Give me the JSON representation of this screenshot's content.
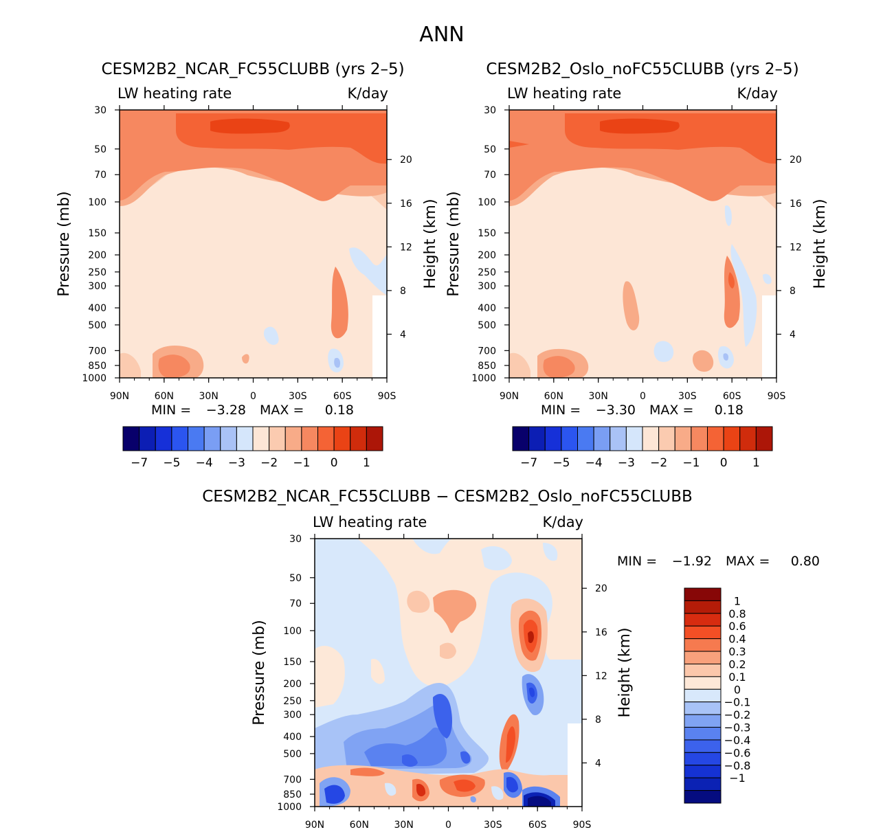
{
  "page_title": "ANN",
  "colors": {
    "blues": [
      "#08006b",
      "#0c1eb4",
      "#1630d8",
      "#2b55f0",
      "#4a7af2",
      "#7a9ef4",
      "#a9c2f6",
      "#d5e6fb"
    ],
    "reds": [
      "#fde6d6",
      "#fbcbb0",
      "#f8ab88",
      "#f68860",
      "#f46335",
      "#ea4315",
      "#d02c0c",
      "#ac1608",
      "#7f0606"
    ],
    "diff": [
      "#050c80",
      "#0b22b4",
      "#1532d4",
      "#2547e4",
      "#3c62ec",
      "#5a82f0",
      "#80a3f3",
      "#a8c3f7",
      "#d8e8fb",
      "#fde8d8",
      "#fbc7ab",
      "#f8a17c",
      "#f67a4f",
      "#f34f25",
      "#d72c10",
      "#b41c08",
      "#870707"
    ]
  },
  "chart_data": [
    {
      "type": "heatmap",
      "id": "panel-ncar",
      "title": "CESM2B2_NCAR_FC55CLUBB (yrs 2–5)",
      "left_label": "LW heating rate",
      "right_label": "K/day",
      "ylabel": "Pressure (mb)",
      "y2label": "Height (km)",
      "x_ticks": [
        "90N",
        "60N",
        "30N",
        "0",
        "30S",
        "60S",
        "90S"
      ],
      "y_ticks": [
        "30",
        "50",
        "70",
        "100",
        "150",
        "200",
        "250",
        "300",
        "400",
        "500",
        "700",
        "850",
        "1000"
      ],
      "y2_ticks": [
        "20",
        "16",
        "12",
        "8",
        "4"
      ],
      "min_label": "MIN =",
      "min_value": "−3.28",
      "max_label": "MAX =",
      "max_value": "0.18",
      "colorbar_labels": [
        "−7",
        "−5",
        "−4",
        "−3",
        "−2",
        "−1",
        "0",
        "1"
      ],
      "colorbar_bins": 16
    },
    {
      "type": "heatmap",
      "id": "panel-oslo",
      "title": "CESM2B2_Oslo_noFC55CLUBB (yrs 2–5)",
      "left_label": "LW heating rate",
      "right_label": "K/day",
      "ylabel": "Pressure (mb)",
      "y2label": "Height (km)",
      "x_ticks": [
        "90N",
        "60N",
        "30N",
        "0",
        "30S",
        "60S",
        "90S"
      ],
      "y_ticks": [
        "30",
        "50",
        "70",
        "100",
        "150",
        "200",
        "250",
        "300",
        "400",
        "500",
        "700",
        "850",
        "1000"
      ],
      "y2_ticks": [
        "20",
        "16",
        "12",
        "8",
        "4"
      ],
      "min_label": "MIN =",
      "min_value": "−3.30",
      "max_label": "MAX =",
      "max_value": "0.18",
      "colorbar_labels": [
        "−7",
        "−5",
        "−4",
        "−3",
        "−2",
        "−1",
        "0",
        "1"
      ],
      "colorbar_bins": 16
    },
    {
      "type": "heatmap",
      "id": "panel-diff",
      "title": "CESM2B2_NCAR_FC55CLUBB − CESM2B2_Oslo_noFC55CLUBB",
      "left_label": "LW heating rate",
      "right_label": "K/day",
      "ylabel": "Pressure (mb)",
      "y2label": "Height (km)",
      "x_ticks": [
        "90N",
        "60N",
        "30N",
        "0",
        "30S",
        "60S",
        "90S"
      ],
      "y_ticks": [
        "30",
        "50",
        "70",
        "100",
        "150",
        "200",
        "250",
        "300",
        "400",
        "500",
        "700",
        "850",
        "1000"
      ],
      "y2_ticks": [
        "20",
        "16",
        "12",
        "8",
        "4"
      ],
      "min_label": "MIN =",
      "min_value": "−1.92",
      "max_label": "MAX =",
      "max_value": "0.80",
      "colorbar_labels": [
        "1",
        "0.8",
        "0.6",
        "0.4",
        "0.3",
        "0.2",
        "0.1",
        "0",
        "−0.1",
        "−0.2",
        "−0.3",
        "−0.4",
        "−0.6",
        "−0.8",
        "−1"
      ]
    }
  ]
}
